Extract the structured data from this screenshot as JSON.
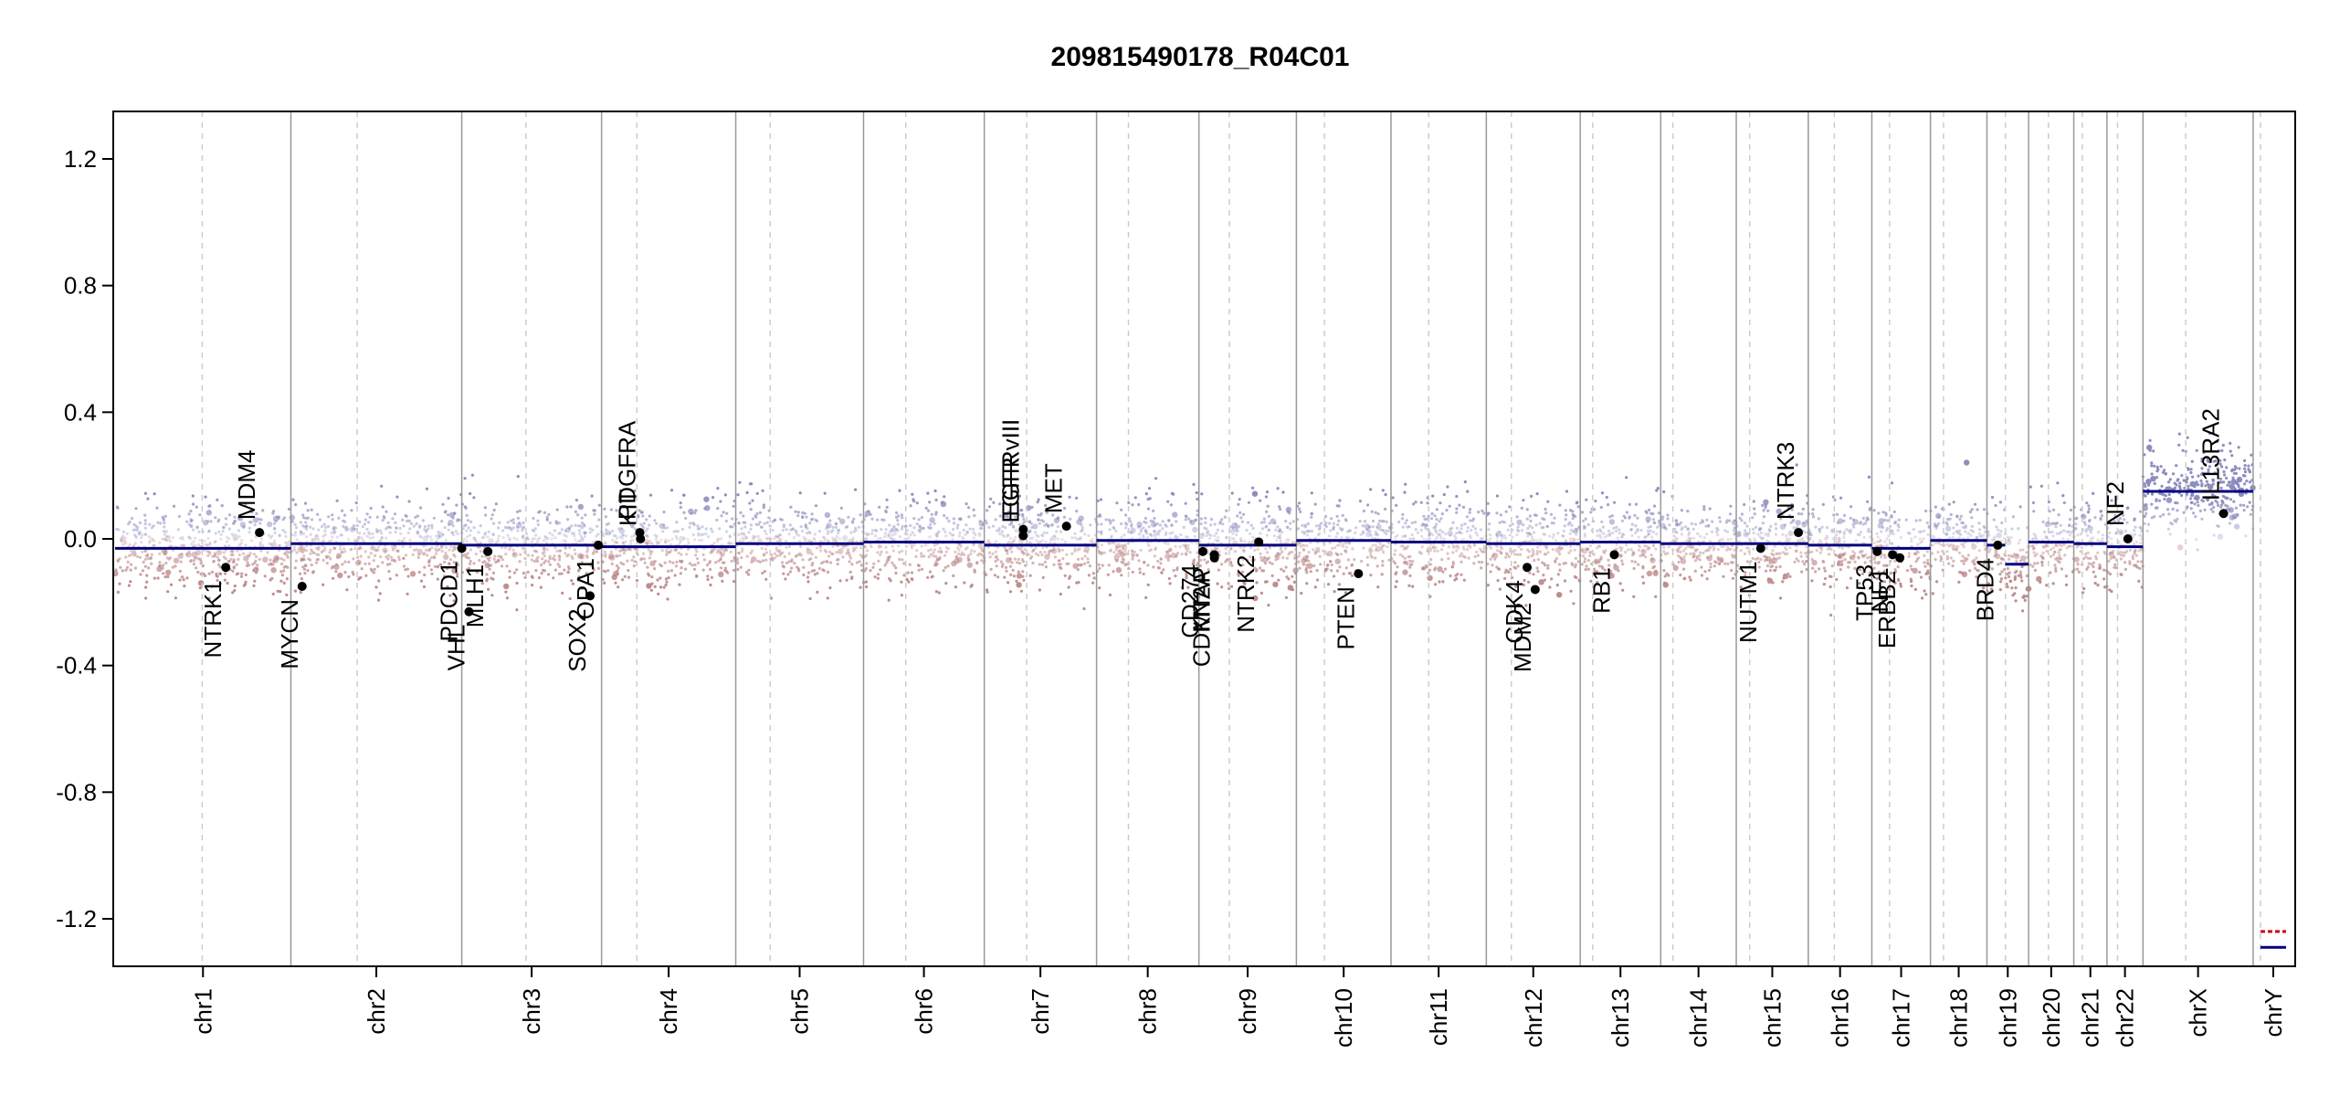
{
  "chart_data": {
    "type": "scatter",
    "title": "209815490178_R04C01",
    "xlabel": "",
    "ylabel": "",
    "ylim": [
      -1.35,
      1.35
    ],
    "yticks": [
      {
        "value": 1.2,
        "label": "1.2"
      },
      {
        "value": 0.8,
        "label": "0.8"
      },
      {
        "value": 0.4,
        "label": "0.4"
      },
      {
        "value": 0.0,
        "label": "0.0"
      },
      {
        "value": -0.4,
        "label": "-0.4"
      },
      {
        "value": -0.8,
        "label": "-0.8"
      },
      {
        "value": -1.2,
        "label": "-1.2"
      }
    ],
    "grid": false,
    "colors": {
      "segment": "#000080",
      "gain_points": "#8888bb",
      "loss_points": "#bb8888",
      "boundary": "#999999",
      "centromere": "#cccccc",
      "gene_point": "#000000",
      "chrY_red": "#cc0000"
    },
    "chromosomes": [
      {
        "name": "chr1",
        "size": 249.0,
        "centromere": 123.4,
        "segments": [
          {
            "start": 0,
            "end": 249.0,
            "value": -0.03
          }
        ]
      },
      {
        "name": "chr2",
        "size": 242.0,
        "centromere": 93.9,
        "segments": [
          {
            "start": 0,
            "end": 242.0,
            "value": -0.015
          }
        ]
      },
      {
        "name": "chr3",
        "size": 198.0,
        "centromere": 90.9,
        "segments": [
          {
            "start": 0,
            "end": 198.0,
            "value": -0.02
          }
        ]
      },
      {
        "name": "chr4",
        "size": 190.0,
        "centromere": 50.0,
        "segments": [
          {
            "start": 0,
            "end": 190.0,
            "value": -0.025
          }
        ]
      },
      {
        "name": "chr5",
        "size": 181.0,
        "centromere": 48.8,
        "segments": [
          {
            "start": 0,
            "end": 181.0,
            "value": -0.015
          }
        ]
      },
      {
        "name": "chr6",
        "size": 171.0,
        "centromere": 59.8,
        "segments": [
          {
            "start": 0,
            "end": 171.0,
            "value": -0.01
          }
        ]
      },
      {
        "name": "chr7",
        "size": 159.0,
        "centromere": 60.1,
        "segments": [
          {
            "start": 0,
            "end": 159.0,
            "value": -0.02
          }
        ]
      },
      {
        "name": "chr8",
        "size": 145.0,
        "centromere": 45.2,
        "segments": [
          {
            "start": 0,
            "end": 145.0,
            "value": -0.005
          }
        ]
      },
      {
        "name": "chr9",
        "size": 138.0,
        "centromere": 43.0,
        "segments": [
          {
            "start": 0,
            "end": 138.0,
            "value": -0.02
          }
        ]
      },
      {
        "name": "chr10",
        "size": 134.0,
        "centromere": 39.8,
        "segments": [
          {
            "start": 0,
            "end": 134.0,
            "value": -0.005
          }
        ]
      },
      {
        "name": "chr11",
        "size": 135.0,
        "centromere": 53.4,
        "segments": [
          {
            "start": 0,
            "end": 135.0,
            "value": -0.01
          }
        ]
      },
      {
        "name": "chr12",
        "size": 133.0,
        "centromere": 35.5,
        "segments": [
          {
            "start": 0,
            "end": 133.0,
            "value": -0.015
          }
        ]
      },
      {
        "name": "chr13",
        "size": 114.0,
        "centromere": 17.7,
        "segments": [
          {
            "start": 0,
            "end": 114.0,
            "value": -0.01
          }
        ]
      },
      {
        "name": "chr14",
        "size": 107.0,
        "centromere": 17.2,
        "segments": [
          {
            "start": 0,
            "end": 107.0,
            "value": -0.015
          }
        ]
      },
      {
        "name": "chr15",
        "size": 102.0,
        "centromere": 19.0,
        "segments": [
          {
            "start": 0,
            "end": 102.0,
            "value": -0.015
          }
        ]
      },
      {
        "name": "chr16",
        "size": 90.0,
        "centromere": 36.8,
        "segments": [
          {
            "start": 0,
            "end": 90.0,
            "value": -0.02
          }
        ]
      },
      {
        "name": "chr17",
        "size": 83.0,
        "centromere": 25.1,
        "segments": [
          {
            "start": 0,
            "end": 83.0,
            "value": -0.03
          }
        ]
      },
      {
        "name": "chr18",
        "size": 80.0,
        "centromere": 18.5,
        "segments": [
          {
            "start": 0,
            "end": 80.0,
            "value": -0.005
          }
        ]
      },
      {
        "name": "chr19",
        "size": 59.0,
        "centromere": 26.2,
        "segments": [
          {
            "start": 0,
            "end": 26.0,
            "value": -0.02
          },
          {
            "start": 26.0,
            "end": 59.0,
            "value": -0.08
          }
        ]
      },
      {
        "name": "chr20",
        "size": 64.0,
        "centromere": 28.1,
        "segments": [
          {
            "start": 0,
            "end": 64.0,
            "value": -0.01
          }
        ]
      },
      {
        "name": "chr21",
        "size": 47.0,
        "centromere": 12.0,
        "segments": [
          {
            "start": 0,
            "end": 47.0,
            "value": -0.015
          }
        ]
      },
      {
        "name": "chr22",
        "size": 51.0,
        "centromere": 15.0,
        "segments": [
          {
            "start": 0,
            "end": 51.0,
            "value": -0.025
          }
        ]
      },
      {
        "name": "chrX",
        "size": 156.0,
        "centromere": 60.6,
        "segments": [
          {
            "start": 0,
            "end": 156.0,
            "value": 0.15
          }
        ]
      },
      {
        "name": "chrY",
        "size": 57.0,
        "centromere": 10.4,
        "segments": []
      }
    ],
    "chrY_marks": [
      {
        "value": -1.24,
        "color": "#cc0000",
        "dashed": true
      },
      {
        "value": -1.29,
        "color": "#000080",
        "dashed": false
      }
    ],
    "genes": [
      {
        "name": "NTRK1",
        "chr": "chr1",
        "pos": 156.8,
        "value": -0.09,
        "side": "below"
      },
      {
        "name": "MDM4",
        "chr": "chr1",
        "pos": 204.5,
        "value": 0.02,
        "side": "above"
      },
      {
        "name": "MYCN",
        "chr": "chr2",
        "pos": 15.9,
        "value": -0.15,
        "side": "below"
      },
      {
        "name": "PDCD1",
        "chr": "chr2",
        "pos": 242.0,
        "value": -0.03,
        "side": "below"
      },
      {
        "name": "VHL",
        "chr": "chr3",
        "pos": 10.2,
        "value": -0.23,
        "side": "below"
      },
      {
        "name": "MLH1",
        "chr": "chr3",
        "pos": 37.0,
        "value": -0.04,
        "side": "below"
      },
      {
        "name": "SOX2",
        "chr": "chr3",
        "pos": 181.7,
        "value": -0.18,
        "side": "below"
      },
      {
        "name": "OPA1",
        "chr": "chr3",
        "pos": 193.3,
        "value": -0.02,
        "side": "below"
      },
      {
        "name": "KIT",
        "chr": "chr4",
        "pos": 55.1,
        "value": 0.0,
        "side": "above"
      },
      {
        "name": "PDGFRA",
        "chr": "chr4",
        "pos": 54.2,
        "value": 0.02,
        "side": "above"
      },
      {
        "name": "EGFR",
        "chr": "chr7",
        "pos": 55.1,
        "value": 0.01,
        "side": "above"
      },
      {
        "name": "EGFRvIII",
        "chr": "chr7",
        "pos": 55.2,
        "value": 0.03,
        "side": "above"
      },
      {
        "name": "MET",
        "chr": "chr7",
        "pos": 116.4,
        "value": 0.04,
        "side": "above"
      },
      {
        "name": "CD274",
        "chr": "chr9",
        "pos": 5.5,
        "value": -0.04,
        "side": "below"
      },
      {
        "name": "CDKN2A",
        "chr": "chr9",
        "pos": 21.9,
        "value": -0.06,
        "side": "below"
      },
      {
        "name": "MTAP",
        "chr": "chr9",
        "pos": 21.8,
        "value": -0.05,
        "side": "below"
      },
      {
        "name": "NTRK2",
        "chr": "chr9",
        "pos": 84.7,
        "value": -0.01,
        "side": "below"
      },
      {
        "name": "PTEN",
        "chr": "chr10",
        "pos": 87.9,
        "value": -0.11,
        "side": "below"
      },
      {
        "name": "CDK4",
        "chr": "chr12",
        "pos": 57.8,
        "value": -0.09,
        "side": "below"
      },
      {
        "name": "MDM2",
        "chr": "chr12",
        "pos": 69.2,
        "value": -0.16,
        "side": "below"
      },
      {
        "name": "RB1",
        "chr": "chr13",
        "pos": 48.3,
        "value": -0.05,
        "side": "below"
      },
      {
        "name": "NUTM1",
        "chr": "chr15",
        "pos": 34.6,
        "value": -0.03,
        "side": "below"
      },
      {
        "name": "NTRK3",
        "chr": "chr15",
        "pos": 88.0,
        "value": 0.02,
        "side": "above"
      },
      {
        "name": "TP53",
        "chr": "chr17",
        "pos": 7.6,
        "value": -0.04,
        "side": "below"
      },
      {
        "name": "NF1",
        "chr": "chr17",
        "pos": 29.4,
        "value": -0.05,
        "side": "below"
      },
      {
        "name": "ERBB2",
        "chr": "chr17",
        "pos": 39.7,
        "value": -0.06,
        "side": "below"
      },
      {
        "name": "BRD4",
        "chr": "chr19",
        "pos": 15.3,
        "value": -0.02,
        "side": "below"
      },
      {
        "name": "NF2",
        "chr": "chr22",
        "pos": 29.6,
        "value": 0.0,
        "side": "above"
      },
      {
        "name": "IL13RA2",
        "chr": "chrX",
        "pos": 114.2,
        "value": 0.08,
        "side": "above"
      }
    ]
  }
}
